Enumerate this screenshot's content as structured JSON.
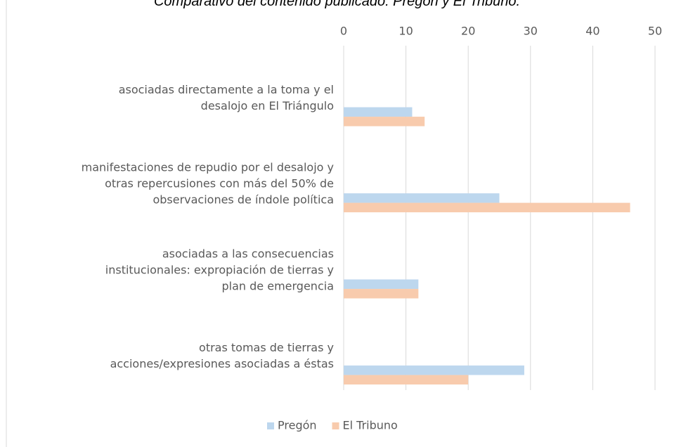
{
  "chart_data": {
    "type": "hbar",
    "title": "Comparativo del contenido publicado: Pregón y El Tribuno.",
    "categories": [
      "asociadas directamente a la toma y el\ndesalojo en El Triángulo",
      "manifestaciones de repudio por el desalojo y\notras repercusiones con más del 50% de\nobservaciones de índole política",
      "asociadas a las consecuencias\ninstitucionales: expropiación de tierras y\nplan de emergencia",
      "otras tomas de tierras y\nacciones/expresiones asociadas a éstas"
    ],
    "series": [
      {
        "name": "Pregón",
        "color": "#bdd7ee",
        "values": [
          11,
          25,
          12,
          29
        ]
      },
      {
        "name": "El Tribuno",
        "color": "#f8cbad",
        "values": [
          13,
          46,
          12,
          20
        ]
      }
    ],
    "xlim": [
      0,
      50
    ],
    "xticks": [
      0,
      10,
      20,
      30,
      40,
      50
    ],
    "grid": true,
    "legend": "bottom"
  }
}
